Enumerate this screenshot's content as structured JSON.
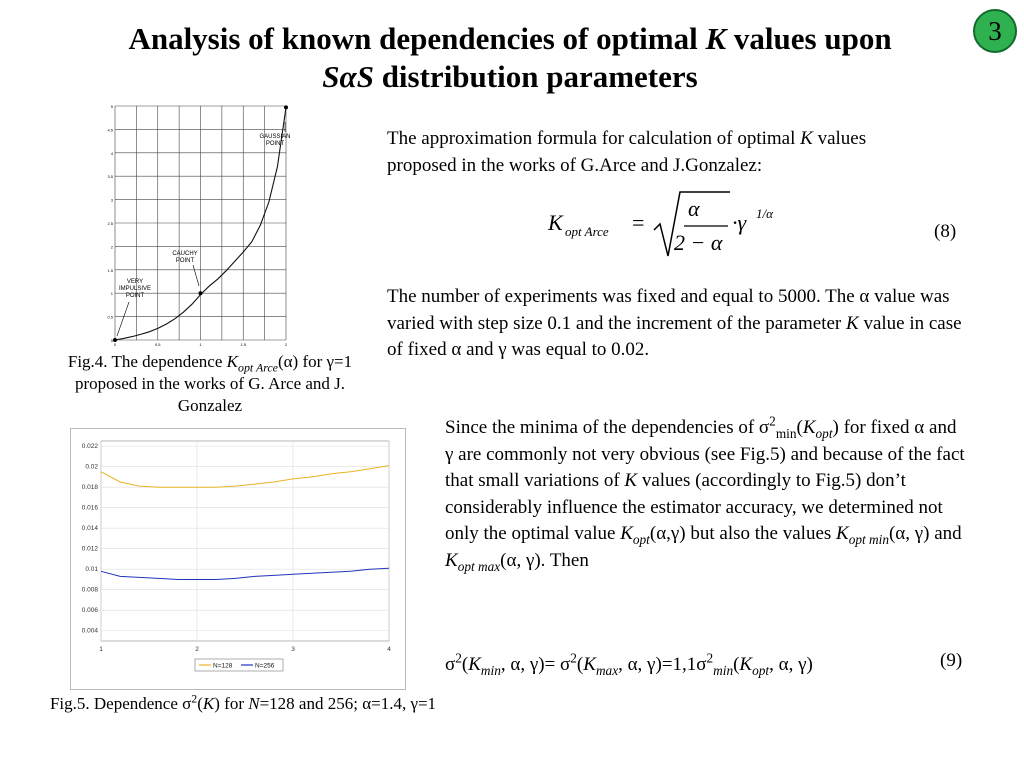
{
  "slide": {
    "number": "3",
    "title_line1_pre": "Analysis of known dependencies of optimal ",
    "title_line1_k": "K",
    "title_line1_post": " values upon",
    "title_line2_sas": "SαS",
    "title_line2_post": " distribution parameters"
  },
  "para1": {
    "pre": "The approximation formula for calculation of optimal ",
    "k": "K",
    "post": " values proposed in the works of G.Arce and J.Gonzalez:"
  },
  "formula8": {
    "K": "K",
    "sub": "opt Arce",
    "eq": "=",
    "num": "α",
    "den": "2 − α",
    "dot": "·γ",
    "exp": "1/α",
    "label": "(8)"
  },
  "para2": {
    "line1": "The number of experiments was fixed and equal to 5000. The α value was varied with step size 0.1 and the increment of the parameter ",
    "k": "K",
    "line2": " value in case of fixed α and γ was equal to 0.02."
  },
  "para3": {
    "t1": "Since the minima of the dependencies of σ",
    "sup2": "2",
    "submin": "min",
    "t2": "(",
    "k1": "K",
    "k1sub": "opt",
    "t3": ") for fixed α and γ are commonly not very obvious (see Fig.5) and because of the fact that small variations of ",
    "k2": "K",
    "t4": " values (accordingly to Fig.5) don’t considerably influence the estimator accuracy, we determined not only the optimal value ",
    "k3": "K",
    "k3sub": "opt",
    "t5": "(α,γ) but also the values ",
    "k4": "K",
    "k4sub": "opt  min",
    "t6": "(α, γ) and ",
    "k5": "K",
    "k5sub": "opt max",
    "t7": "(α, γ). Then"
  },
  "formula9": {
    "s1": "σ",
    "s1sup": "2",
    "a": "(",
    "k1": "K",
    "k1sub": "min",
    "b": ", α, γ)= σ",
    "s2sup": "2",
    "c": "(",
    "k2": "K",
    "k2sub": "max",
    "d": ", α, γ)=1,1σ",
    "s3sup": "2",
    "s3sub": "min",
    "e": "(",
    "k3": "K",
    "k3sub": "opt",
    "f": ", α, γ)",
    "label": "(9)"
  },
  "fig4": {
    "caption_pre": "Fig.4. The dependence ",
    "caption_k": "K",
    "caption_sub": "opt Arce",
    "caption_post": "(α) for γ=1 proposed in the works of G. Arce and J. Gonzalez",
    "labels": {
      "gaussian": [
        "GAUSSIAN",
        "POINT"
      ],
      "cauchy": [
        "CAUCHY",
        "POINT"
      ],
      "impulsive": [
        "VERY",
        "IMPULSIVE",
        "POINT"
      ]
    }
  },
  "fig5": {
    "caption_pre": "Fig.5. Dependence σ",
    "caption_sup": "2",
    "caption_mid": "(",
    "caption_k": "K",
    "caption_mid2": ") for ",
    "caption_n": "N",
    "caption_post": "=128 and 256; α=1.4, γ=1"
  },
  "chart_data": [
    {
      "type": "line",
      "title": "",
      "x": [
        0,
        0.2,
        0.4,
        0.6,
        0.8,
        1.0,
        1.2,
        1.4,
        1.6,
        1.8,
        2.0
      ],
      "series": [
        {
          "name": "",
          "values": [
            0.0,
            0.08,
            0.17,
            0.26,
            0.33,
            1.0,
            1.3,
            1.68,
            2.1,
            2.95,
            4.97
          ]
        }
      ],
      "yticks": [
        "0",
        "0.5",
        "1",
        "1.5",
        "2",
        "2.5",
        "3",
        "3.5",
        "4",
        "4.5",
        "5"
      ],
      "xticks": [
        "0",
        "0.5",
        "1",
        "1.5",
        "2"
      ],
      "xlim": [
        0,
        2
      ],
      "ylim": [
        0,
        5
      ],
      "grid": true
    },
    {
      "type": "line",
      "title": "",
      "x": [
        1,
        1.2,
        1.4,
        1.6,
        1.8,
        2.0,
        2.2,
        2.4,
        2.6,
        2.8,
        3.0,
        3.2,
        3.4,
        3.6,
        3.8,
        4.0
      ],
      "series": [
        {
          "name": "N=128",
          "color": "#e8b323",
          "values": [
            0.0195,
            0.0185,
            0.0181,
            0.018,
            0.018,
            0.018,
            0.018,
            0.0181,
            0.0183,
            0.0185,
            0.0188,
            0.019,
            0.0193,
            0.0195,
            0.0198,
            0.0201
          ]
        },
        {
          "name": "N=256",
          "color": "#2233bb",
          "values": [
            0.0098,
            0.0093,
            0.0092,
            0.0091,
            0.009,
            0.009,
            0.009,
            0.0091,
            0.0093,
            0.0094,
            0.0095,
            0.0096,
            0.0097,
            0.0098,
            0.01,
            0.0101
          ]
        }
      ],
      "yticks": [
        "0.004",
        "0.006",
        "0.008",
        "0.01",
        "0.012",
        "0.014",
        "0.016",
        "0.018",
        "0.02",
        "0.022"
      ],
      "xticks": [
        "1",
        "2",
        "3",
        "4"
      ],
      "xlim": [
        1,
        4
      ],
      "ylim": [
        0.003,
        0.0225
      ],
      "grid": true,
      "legend": "bottom-center"
    }
  ]
}
